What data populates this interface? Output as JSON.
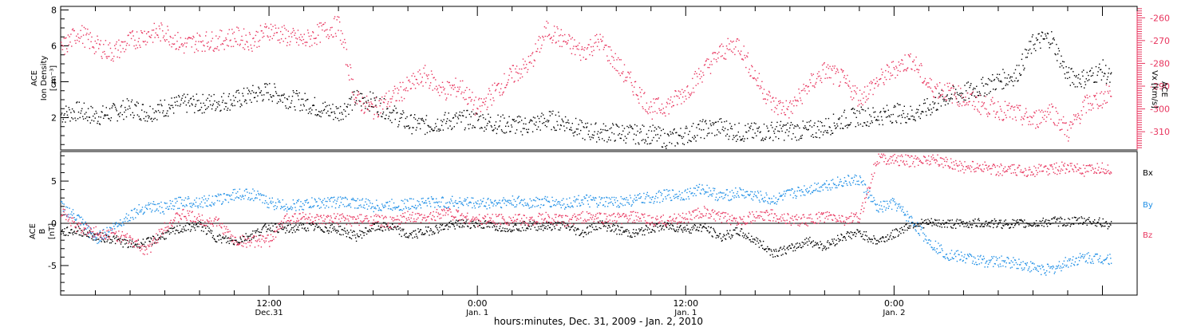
{
  "colors": {
    "black": "#000000",
    "red": "#e8365f",
    "blue": "#1f8fe6",
    "axis": "#000000"
  },
  "xlabel": "hours:minutes, Dec. 31, 2009 - Jan. 2, 2010",
  "x_ticks": [
    {
      "hours": 12,
      "time": "12:00",
      "date": "Dec.31"
    },
    {
      "hours": 24,
      "time": "0:00",
      "date": "Jan. 1"
    },
    {
      "hours": 36,
      "time": "12:00",
      "date": "Jan. 1"
    },
    {
      "hours": 48,
      "time": "0:00",
      "date": "Jan. 2"
    }
  ],
  "chart_data": [
    {
      "type": "scatter",
      "panel": "top",
      "left_axis": {
        "label_lines": [
          "ACE",
          "Ion Density",
          "[cm⁻³]"
        ],
        "ylim": [
          0.2,
          8.2
        ],
        "ticks": [
          2,
          4,
          6,
          8
        ]
      },
      "right_axis": {
        "label_lines": [
          "ACE",
          "Vx [km/s]"
        ],
        "ylim": [
          -318,
          -255
        ],
        "ticks": [
          -260,
          -270,
          -280,
          -290,
          -300,
          -310
        ]
      },
      "xlim_hours": [
        0,
        62
      ],
      "series": [
        {
          "axis": "left",
          "color": "#000000",
          "x": [
            0,
            1,
            2,
            3,
            4,
            5,
            6,
            7,
            8,
            9,
            10,
            11,
            12,
            13,
            14,
            15,
            16,
            17,
            18,
            19,
            20,
            21,
            22,
            23,
            24,
            25,
            26,
            27,
            28,
            29,
            30,
            31,
            32,
            33,
            34,
            35,
            36,
            37,
            38,
            39,
            40,
            41,
            42,
            43,
            44,
            45,
            46,
            47,
            48,
            49,
            50,
            51,
            52,
            53,
            54,
            55,
            56,
            57,
            58,
            59,
            60,
            61,
            62
          ],
          "y": [
            2.2,
            2.4,
            2.1,
            2.3,
            2.6,
            2.3,
            2.6,
            2.8,
            2.8,
            2.9,
            3.0,
            3.3,
            3.5,
            3.1,
            2.9,
            2.5,
            2.3,
            3.1,
            2.9,
            2.3,
            1.7,
            1.6,
            1.8,
            1.9,
            1.9,
            1.7,
            1.6,
            1.6,
            1.9,
            1.8,
            1.3,
            1.2,
            1.2,
            1.1,
            1.1,
            0.8,
            1.1,
            1.4,
            1.5,
            1.2,
            1.2,
            1.3,
            1.3,
            1.3,
            1.5,
            1.9,
            2.1,
            2.1,
            2.3,
            2.2,
            2.6,
            3.2,
            3.4,
            3.7,
            4.1,
            4.4,
            6.2,
            6.5,
            4.3,
            4.2,
            4.7,
            3.5,
            2.6
          ]
        },
        {
          "axis": "right",
          "color": "#e8365f",
          "x": [
            0,
            1,
            2,
            3,
            4,
            5,
            6,
            7,
            8,
            9,
            10,
            11,
            12,
            13,
            14,
            15,
            16,
            17,
            18,
            19,
            20,
            21,
            22,
            23,
            24,
            25,
            26,
            27,
            28,
            29,
            30,
            31,
            32,
            33,
            34,
            35,
            36,
            37,
            38,
            39,
            40,
            41,
            42,
            43,
            44,
            45,
            46,
            47,
            48,
            49,
            50,
            51,
            52,
            53,
            54,
            55,
            56,
            57,
            58,
            59,
            60,
            61,
            62
          ],
          "y": [
            -274,
            -266,
            -272,
            -275,
            -270,
            -267,
            -266,
            -272,
            -270,
            -270,
            -268,
            -270,
            -265,
            -268,
            -270,
            -266,
            -263,
            -296,
            -300,
            -295,
            -290,
            -285,
            -292,
            -290,
            -300,
            -292,
            -285,
            -280,
            -265,
            -270,
            -275,
            -270,
            -280,
            -290,
            -300,
            -298,
            -292,
            -283,
            -275,
            -271,
            -286,
            -298,
            -300,
            -290,
            -283,
            -287,
            -295,
            -288,
            -282,
            -278,
            -290,
            -292,
            -295,
            -298,
            -300,
            -302,
            -305,
            -300,
            -310,
            -298,
            -295,
            -288,
            -310
          ]
        }
      ]
    },
    {
      "type": "scatter",
      "panel": "bottom",
      "left_axis": {
        "label_lines": [
          "ACE",
          "B",
          "[nT]"
        ],
        "ylim": [
          -8.5,
          8.5
        ],
        "ticks": [
          -5,
          0,
          5
        ]
      },
      "xlim_hours": [
        0,
        62
      ],
      "legend": [
        "Bx",
        "By",
        "Bz"
      ],
      "series": [
        {
          "name": "Bx",
          "color": "#000000",
          "x": [
            0,
            1,
            2,
            3,
            4,
            5,
            6,
            7,
            8,
            9,
            10,
            11,
            12,
            13,
            14,
            15,
            16,
            17,
            18,
            19,
            20,
            21,
            22,
            23,
            24,
            25,
            26,
            27,
            28,
            29,
            30,
            31,
            32,
            33,
            34,
            35,
            36,
            37,
            38,
            39,
            40,
            41,
            42,
            43,
            44,
            45,
            46,
            47,
            48,
            49,
            50,
            51,
            52,
            53,
            54,
            55,
            56,
            57,
            58,
            59,
            60,
            61,
            62
          ],
          "y": [
            -1.0,
            -0.8,
            -1.5,
            -1.8,
            -2.5,
            -2.2,
            -1.3,
            -0.5,
            -0.2,
            -1.7,
            -2.1,
            -1.3,
            -0.3,
            -0.7,
            -0.3,
            -0.5,
            -0.7,
            -1.5,
            -0.4,
            -0.4,
            -1.4,
            -0.9,
            -0.4,
            0.0,
            0.0,
            -0.3,
            -0.4,
            -0.2,
            -0.3,
            -0.2,
            -1.1,
            0.0,
            -0.7,
            -1.2,
            -0.5,
            -0.3,
            -0.6,
            -0.4,
            -1.6,
            -0.9,
            -2.0,
            -3.4,
            -3.0,
            -2.0,
            -2.7,
            -1.5,
            -1.1,
            -2.1,
            -1.2,
            0.0,
            0.1,
            0.0,
            0.0,
            0.1,
            0.0,
            0.0,
            0.0,
            0.3,
            0.2,
            0.4,
            0.1,
            -0.5,
            -0.8
          ]
        },
        {
          "name": "By",
          "color": "#1f8fe6",
          "x": [
            0,
            1,
            2,
            3,
            4,
            5,
            6,
            7,
            8,
            9,
            10,
            11,
            12,
            13,
            14,
            15,
            16,
            17,
            18,
            19,
            20,
            21,
            22,
            23,
            24,
            25,
            26,
            27,
            28,
            29,
            30,
            31,
            32,
            33,
            34,
            35,
            36,
            37,
            38,
            39,
            40,
            41,
            42,
            43,
            44,
            45,
            46,
            47,
            48,
            49,
            50,
            51,
            52,
            53,
            54,
            55,
            56,
            57,
            58,
            59,
            60,
            61,
            62
          ],
          "y": [
            2.1,
            0.5,
            -1.8,
            -0.5,
            1.1,
            2.1,
            1.8,
            2.7,
            2.6,
            2.8,
            3.5,
            3.5,
            2.5,
            2.1,
            2.3,
            2.5,
            2.6,
            2.5,
            2.1,
            2.2,
            2.3,
            2.6,
            2.5,
            2.6,
            2.4,
            2.5,
            2.6,
            2.5,
            2.6,
            2.4,
            2.8,
            2.5,
            2.6,
            2.8,
            3.1,
            3.4,
            3.5,
            4.2,
            3.2,
            3.7,
            3.3,
            2.8,
            3.5,
            4.1,
            4.6,
            5.0,
            5.2,
            1.8,
            2.4,
            0.3,
            -2.1,
            -3.6,
            -4.0,
            -4.4,
            -4.5,
            -4.6,
            -5.2,
            -5.5,
            -4.5,
            -4.0,
            -4.1,
            -4.1,
            -3.9
          ]
        },
        {
          "name": "Bz",
          "color": "#e8365f",
          "x": [
            0,
            1,
            2,
            3,
            4,
            5,
            6,
            7,
            8,
            9,
            10,
            11,
            12,
            13,
            14,
            15,
            16,
            17,
            18,
            19,
            20,
            21,
            22,
            23,
            24,
            25,
            26,
            27,
            28,
            29,
            30,
            31,
            32,
            33,
            34,
            35,
            36,
            37,
            38,
            39,
            40,
            41,
            42,
            43,
            44,
            45,
            46,
            47,
            48,
            49,
            50,
            51,
            52,
            53,
            54,
            55,
            56,
            57,
            58,
            59,
            60,
            61,
            62
          ],
          "y": [
            1.5,
            -0.5,
            -1.0,
            -1.2,
            -2.0,
            -3.2,
            -0.2,
            1.1,
            0.5,
            0.2,
            -2.0,
            -2.1,
            -2.0,
            0.7,
            0.8,
            0.3,
            0.6,
            0.4,
            0.5,
            0.1,
            0.8,
            0.5,
            1.5,
            0.9,
            0.4,
            0.6,
            0.5,
            0.4,
            0.7,
            0.3,
            0.8,
            0.7,
            0.6,
            0.8,
            0.3,
            0.4,
            0.8,
            1.4,
            0.7,
            0.5,
            0.8,
            1.0,
            0.5,
            0.4,
            0.9,
            0.5,
            0.7,
            7.8,
            7.6,
            7.4,
            7.7,
            7.3,
            6.7,
            6.8,
            6.4,
            6.3,
            6.3,
            6.5,
            6.7,
            6.2,
            6.6,
            6.2,
            6.9
          ]
        }
      ]
    }
  ]
}
